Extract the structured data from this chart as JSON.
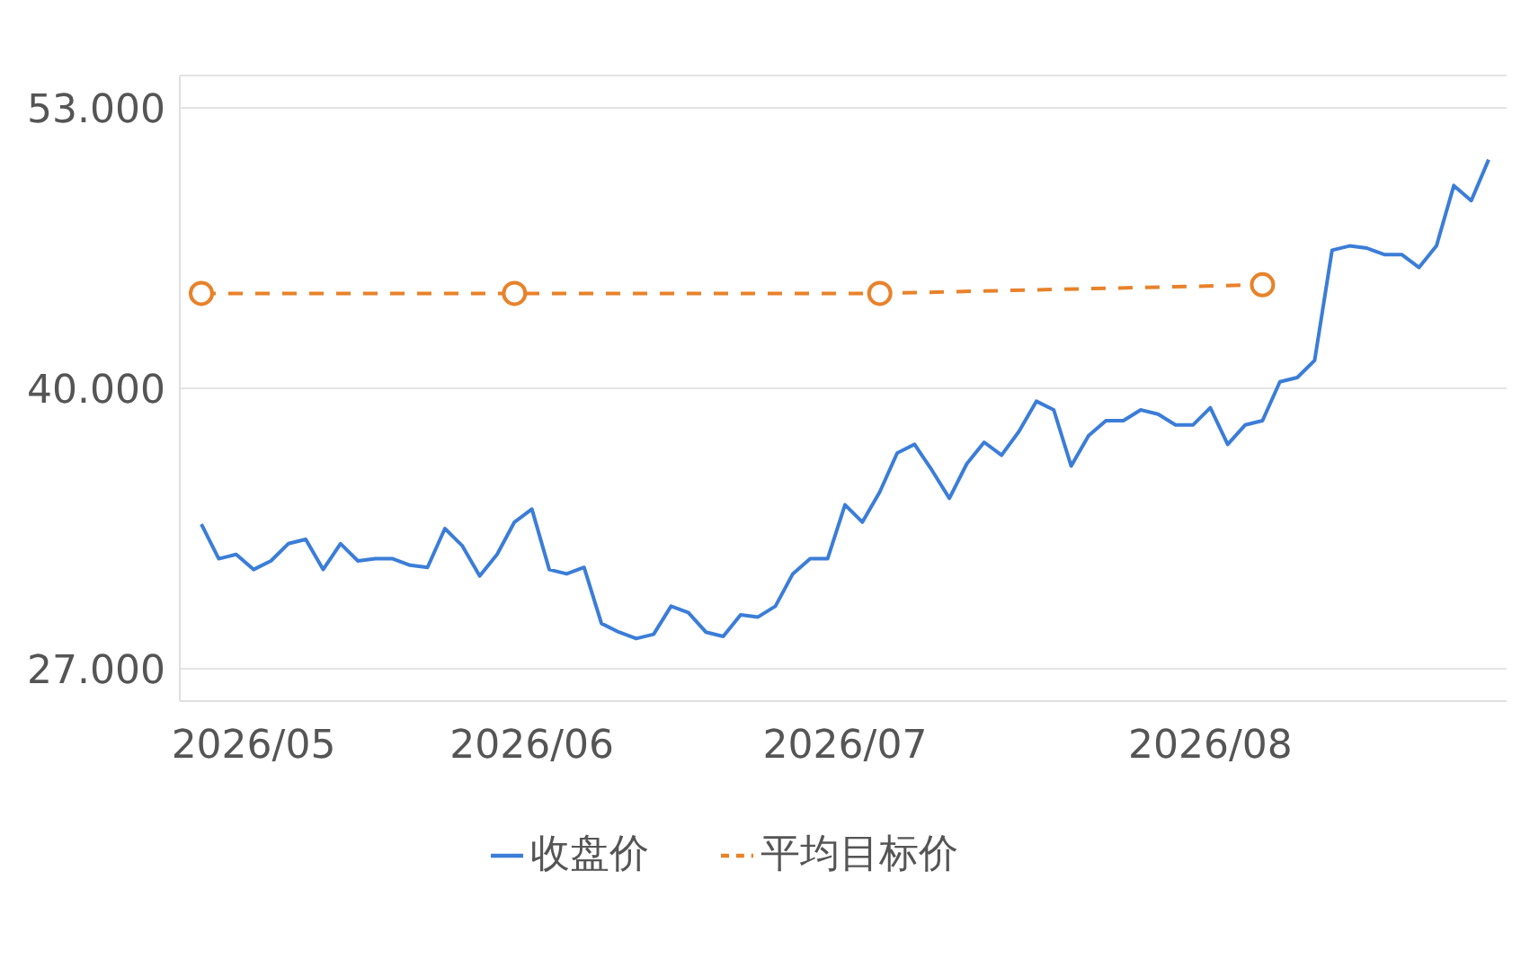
{
  "chart_data": {
    "type": "line",
    "categories": [
      null,
      null,
      null,
      "2026/05",
      null,
      null,
      null,
      null,
      null,
      null,
      null,
      null,
      null,
      null,
      null,
      null,
      null,
      null,
      null,
      "2026/06",
      null,
      null,
      null,
      null,
      null,
      null,
      null,
      null,
      null,
      null,
      null,
      null,
      null,
      null,
      null,
      null,
      null,
      "2026/07",
      null,
      null,
      null,
      null,
      null,
      null,
      null,
      null,
      null,
      null,
      null,
      null,
      null,
      null,
      null,
      null,
      null,
      null,
      null,
      null,
      "2026/08",
      null,
      null,
      null,
      null,
      null,
      null,
      null,
      null,
      null,
      null,
      null,
      null,
      null,
      null,
      null,
      null
    ],
    "series": [
      {
        "name": "收盘价",
        "color": "#3b7dd8",
        "marker": "none",
        "line_style": "solid",
        "values": [
          33.7,
          32.1,
          32.3,
          31.6,
          32.0,
          32.8,
          33.0,
          31.6,
          32.8,
          32.0,
          32.1,
          32.1,
          31.8,
          31.7,
          33.5,
          32.7,
          31.3,
          32.3,
          33.8,
          34.4,
          31.6,
          31.4,
          31.7,
          29.1,
          28.7,
          28.4,
          28.6,
          29.9,
          29.6,
          28.7,
          28.5,
          29.5,
          29.4,
          29.9,
          31.4,
          32.1,
          32.1,
          34.6,
          33.8,
          35.2,
          37.0,
          37.4,
          36.2,
          34.9,
          36.5,
          37.5,
          36.9,
          38.0,
          39.4,
          39.0,
          36.4,
          37.8,
          38.5,
          38.5,
          39.0,
          38.8,
          38.3,
          38.3,
          39.1,
          37.4,
          38.3,
          38.5,
          40.3,
          40.5,
          41.3,
          46.4,
          46.6,
          46.5,
          46.2,
          46.2,
          45.6,
          46.6,
          49.4,
          48.7,
          50.6
        ]
      },
      {
        "name": "平均目标价",
        "color": "#e8822a",
        "marker": "circle",
        "line_style": "dashed",
        "values": [
          44.4,
          null,
          null,
          null,
          null,
          null,
          null,
          null,
          null,
          null,
          null,
          null,
          null,
          null,
          null,
          null,
          null,
          null,
          44.4,
          null,
          null,
          null,
          null,
          null,
          null,
          null,
          null,
          null,
          null,
          null,
          null,
          null,
          null,
          null,
          null,
          null,
          null,
          null,
          null,
          44.4,
          null,
          null,
          null,
          null,
          null,
          null,
          null,
          null,
          null,
          null,
          null,
          null,
          null,
          null,
          null,
          null,
          null,
          null,
          null,
          null,
          null,
          44.8,
          null,
          null,
          null,
          null,
          null,
          null,
          null,
          null,
          null,
          null,
          null,
          null,
          null
        ]
      }
    ],
    "ylim": [
      25.5,
      54.5
    ],
    "yticks": [
      {
        "value": 27,
        "label": "27.000"
      },
      {
        "value": 40,
        "label": "40.000"
      },
      {
        "value": 53,
        "label": "53.000"
      }
    ],
    "grid": "y",
    "legend": "bottom"
  }
}
